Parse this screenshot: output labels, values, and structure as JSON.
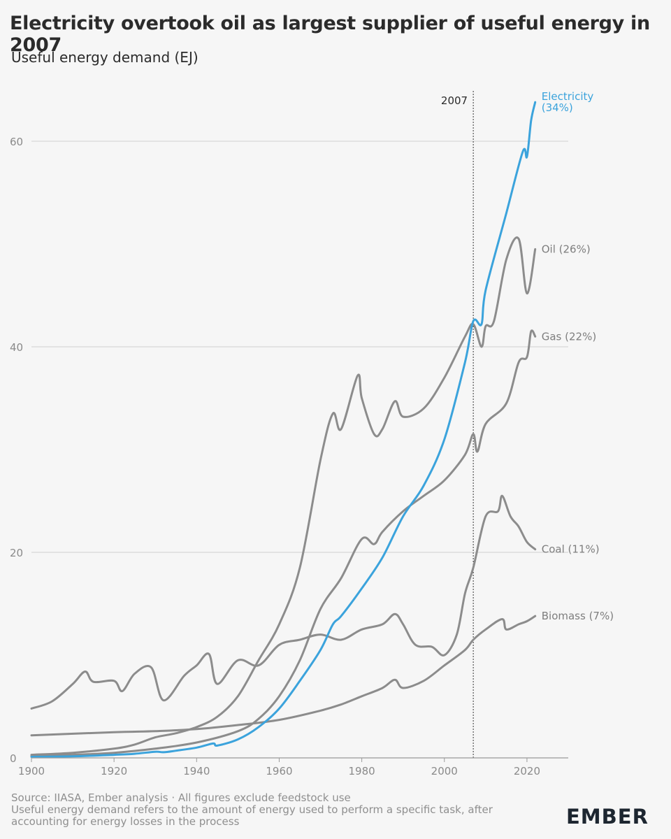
{
  "title": "Electricity overtook oil as largest supplier of useful energy in 2007",
  "subtitle": "Useful energy demand (EJ)",
  "footer": {
    "source": "Source: IIASA, Ember analysis · All figures exclude feedstock use",
    "note_line1": "Useful energy demand refers to the amount of energy used to perform a specific task, after",
    "note_line2": "accounting for energy losses in the process"
  },
  "logo_text": "EMBER",
  "colors": {
    "highlight": "#3ba3dc",
    "series": "#8c8c8c",
    "grid": "#d0d0d0",
    "axis": "#9a9a9a"
  },
  "chart_data": {
    "type": "line",
    "title": "Electricity overtook oil as largest supplier of useful energy in 2007",
    "subtitle": "Useful energy demand (EJ)",
    "xlabel": "",
    "ylabel": "",
    "xlim": [
      1900,
      2030
    ],
    "ylim": [
      0,
      65
    ],
    "xticks": [
      1900,
      1920,
      1940,
      1960,
      1980,
      2000,
      2020
    ],
    "yticks": [
      0,
      20,
      40,
      60
    ],
    "grid": true,
    "annotation": {
      "x": 2007,
      "label": "2007"
    },
    "series": [
      {
        "name": "Electricity",
        "share_label": "(34%)",
        "label": "Electricity\n(34%)",
        "highlight": true,
        "points": [
          [
            1900,
            0.1
          ],
          [
            1910,
            0.15
          ],
          [
            1920,
            0.3
          ],
          [
            1925,
            0.4
          ],
          [
            1930,
            0.6
          ],
          [
            1932,
            0.55
          ],
          [
            1935,
            0.7
          ],
          [
            1940,
            1.0
          ],
          [
            1944,
            1.4
          ],
          [
            1945,
            1.2
          ],
          [
            1950,
            1.8
          ],
          [
            1955,
            3.0
          ],
          [
            1960,
            4.8
          ],
          [
            1965,
            7.5
          ],
          [
            1970,
            10.5
          ],
          [
            1973,
            13.0
          ],
          [
            1975,
            13.8
          ],
          [
            1980,
            16.5
          ],
          [
            1985,
            19.5
          ],
          [
            1990,
            23.5
          ],
          [
            1995,
            26.5
          ],
          [
            2000,
            31.0
          ],
          [
            2005,
            38.5
          ],
          [
            2007,
            42.5
          ],
          [
            2009,
            42.2
          ],
          [
            2010,
            45.5
          ],
          [
            2015,
            53.0
          ],
          [
            2019,
            59.0
          ],
          [
            2020,
            58.5
          ],
          [
            2021,
            62.0
          ],
          [
            2022,
            63.8
          ]
        ]
      },
      {
        "name": "Oil",
        "share_label": "(26%)",
        "label": "Oil (26%)",
        "highlight": false,
        "points": [
          [
            1900,
            0.3
          ],
          [
            1910,
            0.5
          ],
          [
            1920,
            0.9
          ],
          [
            1925,
            1.3
          ],
          [
            1930,
            2.0
          ],
          [
            1935,
            2.4
          ],
          [
            1940,
            3.0
          ],
          [
            1945,
            4.0
          ],
          [
            1950,
            6.0
          ],
          [
            1955,
            9.5
          ],
          [
            1960,
            13.0
          ],
          [
            1965,
            18.5
          ],
          [
            1970,
            29.0
          ],
          [
            1973,
            33.5
          ],
          [
            1975,
            32.0
          ],
          [
            1979,
            37.2
          ],
          [
            1980,
            35.0
          ],
          [
            1983,
            31.5
          ],
          [
            1985,
            32.0
          ],
          [
            1988,
            34.7
          ],
          [
            1990,
            33.2
          ],
          [
            1995,
            34.0
          ],
          [
            2000,
            37.0
          ],
          [
            2005,
            41.0
          ],
          [
            2007,
            42.2
          ],
          [
            2009,
            40.0
          ],
          [
            2010,
            42.0
          ],
          [
            2012,
            42.5
          ],
          [
            2015,
            48.5
          ],
          [
            2018,
            50.5
          ],
          [
            2020,
            45.2
          ],
          [
            2022,
            49.5
          ]
        ]
      },
      {
        "name": "Gas",
        "share_label": "(22%)",
        "label": "Gas (22%)",
        "highlight": false,
        "points": [
          [
            1900,
            0.2
          ],
          [
            1910,
            0.3
          ],
          [
            1920,
            0.5
          ],
          [
            1930,
            0.9
          ],
          [
            1940,
            1.5
          ],
          [
            1950,
            2.6
          ],
          [
            1955,
            3.8
          ],
          [
            1960,
            6.0
          ],
          [
            1965,
            9.5
          ],
          [
            1970,
            14.5
          ],
          [
            1975,
            17.5
          ],
          [
            1980,
            21.3
          ],
          [
            1983,
            20.8
          ],
          [
            1985,
            22.0
          ],
          [
            1990,
            24.0
          ],
          [
            1995,
            25.5
          ],
          [
            2000,
            27.0
          ],
          [
            2005,
            29.5
          ],
          [
            2007,
            31.5
          ],
          [
            2008,
            29.8
          ],
          [
            2010,
            32.5
          ],
          [
            2015,
            34.5
          ],
          [
            2018,
            38.5
          ],
          [
            2020,
            39.0
          ],
          [
            2021,
            41.5
          ],
          [
            2022,
            41.0
          ]
        ]
      },
      {
        "name": "Coal",
        "share_label": "(11%)",
        "label": "Coal (11%)",
        "highlight": false,
        "points": [
          [
            1900,
            4.8
          ],
          [
            1905,
            5.5
          ],
          [
            1910,
            7.2
          ],
          [
            1913,
            8.4
          ],
          [
            1915,
            7.4
          ],
          [
            1920,
            7.5
          ],
          [
            1922,
            6.5
          ],
          [
            1925,
            8.2
          ],
          [
            1929,
            8.8
          ],
          [
            1932,
            5.6
          ],
          [
            1937,
            8.0
          ],
          [
            1940,
            9.0
          ],
          [
            1943,
            10.1
          ],
          [
            1945,
            7.2
          ],
          [
            1950,
            9.5
          ],
          [
            1955,
            9.0
          ],
          [
            1960,
            11.0
          ],
          [
            1965,
            11.5
          ],
          [
            1970,
            12.0
          ],
          [
            1975,
            11.5
          ],
          [
            1980,
            12.5
          ],
          [
            1985,
            13.0
          ],
          [
            1988,
            14.0
          ],
          [
            1990,
            13.0
          ],
          [
            1993,
            11.0
          ],
          [
            1997,
            10.8
          ],
          [
            2000,
            10.0
          ],
          [
            2003,
            12.0
          ],
          [
            2005,
            16.0
          ],
          [
            2007,
            18.5
          ],
          [
            2010,
            23.5
          ],
          [
            2013,
            24.0
          ],
          [
            2014,
            25.5
          ],
          [
            2016,
            23.5
          ],
          [
            2018,
            22.5
          ],
          [
            2020,
            21.0
          ],
          [
            2022,
            20.3
          ]
        ]
      },
      {
        "name": "Biomass",
        "share_label": "(7%)",
        "label": "Biomass (7%)",
        "highlight": false,
        "points": [
          [
            1900,
            2.2
          ],
          [
            1920,
            2.5
          ],
          [
            1930,
            2.6
          ],
          [
            1940,
            2.8
          ],
          [
            1950,
            3.2
          ],
          [
            1960,
            3.7
          ],
          [
            1970,
            4.6
          ],
          [
            1975,
            5.2
          ],
          [
            1980,
            6.0
          ],
          [
            1985,
            6.8
          ],
          [
            1988,
            7.6
          ],
          [
            1990,
            6.8
          ],
          [
            1995,
            7.5
          ],
          [
            2000,
            9.0
          ],
          [
            2005,
            10.5
          ],
          [
            2007,
            11.5
          ],
          [
            2010,
            12.5
          ],
          [
            2014,
            13.5
          ],
          [
            2015,
            12.5
          ],
          [
            2018,
            13.0
          ],
          [
            2020,
            13.3
          ],
          [
            2022,
            13.8
          ]
        ]
      }
    ]
  }
}
